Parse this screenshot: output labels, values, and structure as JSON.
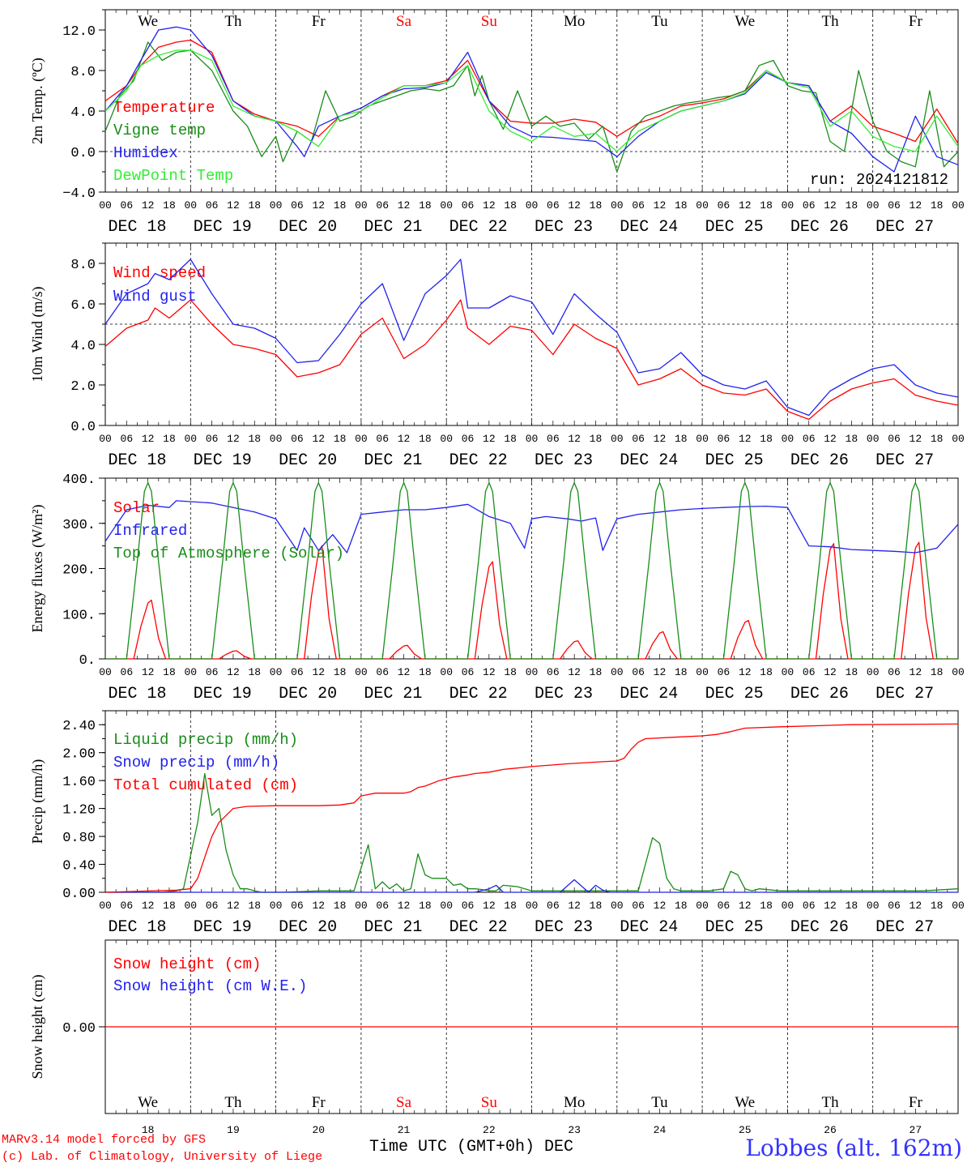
{
  "credits": {
    "line1": "MARv3.14 model forced by GFS",
    "line2": "(c) Lab. of Climatology, University of Liege"
  },
  "footer": {
    "xlabel": "Time UTC (GMT+0h) DEC",
    "station": "Lobbes (alt. 162m)"
  },
  "colors": {
    "red": "#ff0000",
    "green": "#1a8c1a",
    "blue": "#2222ee",
    "lightgreen": "#33ee33",
    "weekend": "#ff0000",
    "weekday": "#000000"
  },
  "timeline": {
    "days": [
      "We",
      "Th",
      "Fr",
      "Sa",
      "Su",
      "Mo",
      "Tu",
      "We",
      "Th",
      "Fr"
    ],
    "weekend": [
      false,
      false,
      false,
      true,
      true,
      false,
      false,
      false,
      false,
      false
    ],
    "dates": [
      "DEC 18",
      "DEC 19",
      "DEC 20",
      "DEC 21",
      "DEC 22",
      "DEC 23",
      "DEC 24",
      "DEC 25",
      "DEC 26",
      "DEC 27"
    ],
    "day_numbers": [
      "18",
      "19",
      "20",
      "21",
      "22",
      "23",
      "24",
      "25",
      "26",
      "27"
    ],
    "hour_ticks": [
      "00",
      "06",
      "12",
      "18"
    ],
    "start": "2024-12-18 00 UTC",
    "end": "2024-12-28 00 UTC"
  },
  "chart_data": [
    {
      "type": "line",
      "ylabel": "2m Temp. (ºC)",
      "ylim": [
        -4,
        14
      ],
      "yticks": [
        "−4.0",
        "0.0",
        "4.0",
        "8.0",
        "12.0"
      ],
      "ytick_values": [
        -4,
        0,
        4,
        8,
        12
      ],
      "ref_line": 0,
      "show_day_names": true,
      "annotation": "run: 2024121812",
      "x_unit": "hours since 2024-12-18 00 UTC",
      "series": [
        {
          "name": "Temperature",
          "color": "red",
          "x": [
            0,
            6,
            10,
            15,
            20,
            24,
            30,
            36,
            42,
            48,
            54,
            60,
            66,
            72,
            78,
            84,
            90,
            96,
            102,
            108,
            114,
            120,
            126,
            132,
            138,
            144,
            150,
            156,
            162,
            168,
            174,
            180,
            186,
            192,
            198,
            204,
            210,
            216,
            222,
            228,
            234,
            240
          ],
          "y": [
            5,
            6.5,
            8.5,
            10.3,
            10.8,
            11,
            9.8,
            5,
            3.7,
            3,
            2.5,
            1.5,
            3.5,
            4.3,
            5.5,
            6.5,
            6.5,
            7,
            9,
            5,
            3,
            2.8,
            2.8,
            3.2,
            2.9,
            1.5,
            2.8,
            3.5,
            4.5,
            4.8,
            5.2,
            6,
            8,
            6.8,
            6.5,
            3,
            4.5,
            2.5,
            1.8,
            1,
            4.2,
            0.8
          ]
        },
        {
          "name": "Vigne temp",
          "color": "green",
          "x": [
            0,
            4,
            8,
            12,
            16,
            20,
            24,
            30,
            36,
            40,
            44,
            48,
            50,
            54,
            58,
            62,
            66,
            70,
            74,
            78,
            82,
            86,
            90,
            94,
            98,
            102,
            104,
            106,
            108,
            112,
            116,
            120,
            124,
            128,
            132,
            136,
            140,
            144,
            148,
            152,
            156,
            160,
            164,
            168,
            172,
            176,
            180,
            184,
            188,
            192,
            196,
            200,
            204,
            208,
            212,
            216,
            220,
            224,
            228,
            232,
            236,
            240
          ],
          "y": [
            2,
            5.5,
            7,
            10.8,
            9,
            9.8,
            10,
            8,
            4,
            2.5,
            -0.5,
            1.5,
            -1,
            2,
            1,
            6,
            3,
            3.5,
            4.5,
            5,
            5.5,
            6,
            6.2,
            6,
            6.5,
            8.5,
            5.5,
            7.5,
            5,
            2.2,
            6,
            2.5,
            3.5,
            2.5,
            2.8,
            1.2,
            2.5,
            -2,
            2,
            3.5,
            4,
            4.5,
            4.8,
            5,
            5.3,
            5.5,
            6,
            8.5,
            9,
            6.5,
            6,
            5.8,
            1,
            0,
            8,
            3,
            0,
            -1,
            -1.5,
            6,
            -1.5,
            0
          ]
        },
        {
          "name": "Humidex",
          "color": "blue",
          "x": [
            0,
            6,
            10,
            15,
            20,
            24,
            30,
            36,
            42,
            48,
            54,
            56,
            60,
            66,
            72,
            78,
            84,
            90,
            96,
            102,
            108,
            114,
            120,
            126,
            132,
            138,
            144,
            150,
            156,
            162,
            168,
            174,
            180,
            186,
            192,
            198,
            204,
            210,
            216,
            222,
            228,
            234,
            240
          ],
          "y": [
            4,
            6.5,
            9,
            12,
            12.3,
            12,
            9.5,
            5,
            3.5,
            3,
            0.5,
            -0.5,
            2.5,
            3.5,
            4.3,
            5.5,
            6.2,
            6.3,
            6.8,
            9.8,
            5,
            2.5,
            1.5,
            1.4,
            1.2,
            1,
            -0.5,
            1.5,
            3,
            4,
            4.5,
            5,
            5.7,
            7.8,
            6.8,
            6.5,
            3,
            1.8,
            -0.5,
            -2,
            3.5,
            -0.5,
            -1.3
          ]
        },
        {
          "name": "DewPoint Temp",
          "color": "lightgreen",
          "x": [
            0,
            6,
            10,
            15,
            20,
            24,
            30,
            36,
            42,
            48,
            54,
            60,
            66,
            72,
            78,
            84,
            90,
            96,
            102,
            108,
            114,
            120,
            126,
            132,
            138,
            144,
            150,
            156,
            162,
            168,
            174,
            180,
            186,
            192,
            198,
            204,
            210,
            216,
            222,
            228,
            234,
            240
          ],
          "y": [
            4,
            6,
            8.5,
            9.5,
            10,
            10,
            9,
            4.5,
            3.5,
            3,
            2,
            0.5,
            3.5,
            4,
            5.3,
            6.5,
            6.5,
            6.8,
            8.5,
            4,
            2,
            1,
            2.5,
            1.5,
            1.8,
            0,
            2,
            3,
            4,
            4.5,
            5,
            5.8,
            8,
            6.8,
            6.3,
            2.5,
            4,
            1.5,
            0.5,
            0,
            3.5,
            0.5
          ]
        }
      ]
    },
    {
      "type": "line",
      "ylabel": "10m Wind (m/s)",
      "ylim": [
        0,
        9
      ],
      "yticks": [
        "0.0",
        "2.0",
        "4.0",
        "6.0",
        "8.0"
      ],
      "ytick_values": [
        0,
        2,
        4,
        6,
        8
      ],
      "ref_line": 5,
      "x_unit": "hours since 2024-12-18 00 UTC",
      "series": [
        {
          "name": "Wind speed",
          "color": "red",
          "x": [
            0,
            6,
            12,
            14,
            18,
            24,
            30,
            36,
            42,
            48,
            54,
            60,
            66,
            72,
            78,
            84,
            90,
            96,
            100,
            102,
            108,
            114,
            120,
            126,
            132,
            138,
            144,
            150,
            156,
            162,
            168,
            174,
            180,
            186,
            192,
            198,
            204,
            210,
            216,
            222,
            228,
            234,
            240
          ],
          "y": [
            3.9,
            4.8,
            5.2,
            5.8,
            5.3,
            6.2,
            5,
            4,
            3.8,
            3.5,
            2.4,
            2.6,
            3,
            4.5,
            5.3,
            3.3,
            4,
            5.2,
            6.2,
            4.8,
            4,
            4.9,
            4.7,
            3.5,
            5,
            4.3,
            3.8,
            2,
            2.3,
            2.8,
            2,
            1.6,
            1.5,
            1.8,
            0.7,
            0.3,
            1.2,
            1.8,
            2.1,
            2.3,
            1.5,
            1.2,
            1
          ]
        },
        {
          "name": "Wind gust",
          "color": "blue",
          "x": [
            0,
            6,
            12,
            14,
            18,
            24,
            30,
            36,
            42,
            48,
            54,
            60,
            66,
            72,
            78,
            84,
            90,
            96,
            100,
            102,
            108,
            114,
            120,
            126,
            132,
            138,
            144,
            150,
            156,
            162,
            168,
            174,
            180,
            186,
            192,
            198,
            204,
            210,
            216,
            222,
            228,
            234,
            240
          ],
          "y": [
            5,
            6.5,
            7,
            7.5,
            7.2,
            8.2,
            6.5,
            5,
            4.8,
            4.3,
            3.1,
            3.2,
            4.5,
            6,
            7,
            4.2,
            6.5,
            7.4,
            8.2,
            5.8,
            5.8,
            6.4,
            6.1,
            4.5,
            6.5,
            5.5,
            4.6,
            2.6,
            2.8,
            3.6,
            2.5,
            2,
            1.8,
            2.2,
            0.9,
            0.5,
            1.7,
            2.3,
            2.8,
            3,
            2,
            1.6,
            1.4
          ]
        }
      ]
    },
    {
      "type": "line",
      "ylabel": "Energy fluxes (W/m²)",
      "ylim": [
        0,
        400
      ],
      "yticks": [
        "0.",
        "100.",
        "200.",
        "300.",
        "400."
      ],
      "ytick_values": [
        0,
        100,
        200,
        300,
        400
      ],
      "x_unit": "hours since 2024-12-18 00 UTC",
      "series": [
        {
          "name": "Solar",
          "color": "red",
          "solar_day_peaks": [
            130,
            18,
            250,
            30,
            215,
            40,
            60,
            85,
            255,
            258
          ]
        },
        {
          "name": "Infrared",
          "color": "blue",
          "x": [
            0,
            6,
            12,
            18,
            20,
            24,
            30,
            36,
            42,
            48,
            54,
            56,
            60,
            64,
            68,
            72,
            78,
            84,
            90,
            96,
            102,
            108,
            114,
            118,
            120,
            124,
            130,
            134,
            138,
            140,
            144,
            150,
            156,
            162,
            168,
            174,
            180,
            186,
            192,
            198,
            204,
            210,
            216,
            222,
            228,
            234,
            240
          ],
          "y": [
            260,
            330,
            340,
            335,
            350,
            348,
            345,
            335,
            325,
            310,
            240,
            290,
            240,
            275,
            235,
            320,
            325,
            330,
            330,
            335,
            342,
            315,
            300,
            245,
            310,
            315,
            310,
            305,
            312,
            240,
            310,
            320,
            325,
            330,
            333,
            335,
            337,
            338,
            335,
            250,
            248,
            242,
            240,
            238,
            235,
            245,
            298
          ]
        },
        {
          "name": "Top of Atmosphere (Solar)",
          "color": "green",
          "toa_peak": 390
        }
      ]
    },
    {
      "type": "line",
      "ylabel": "Precip (mm/h)",
      "ylim": [
        0,
        2.6
      ],
      "yticks": [
        "0.00",
        "0.40",
        "0.80",
        "1.20",
        "1.60",
        "2.00",
        "2.40"
      ],
      "ytick_values": [
        0,
        0.4,
        0.8,
        1.2,
        1.6,
        2.0,
        2.4
      ],
      "x_unit": "hours since 2024-12-18 00 UTC",
      "series": [
        {
          "name": "Liquid precip (mm/h)",
          "color": "green",
          "x": [
            0,
            16,
            20,
            22,
            26,
            28,
            30,
            32,
            34,
            36,
            38,
            40,
            42,
            44,
            46,
            50,
            60,
            70,
            74,
            76,
            78,
            80,
            82,
            84,
            86,
            88,
            90,
            92,
            96,
            98,
            100,
            102,
            104,
            106,
            108,
            110,
            112,
            116,
            120,
            130,
            136,
            146,
            150,
            152,
            154,
            156,
            158,
            160,
            162,
            166,
            170,
            174,
            176,
            178,
            180,
            182,
            184,
            190,
            210,
            230,
            240
          ],
          "y": [
            0,
            0,
            0.02,
            0.05,
            1,
            1.7,
            1.1,
            1.2,
            0.6,
            0.25,
            0.05,
            0.05,
            0.02,
            0,
            0,
            0,
            0.02,
            0.02,
            0.68,
            0.05,
            0.15,
            0.05,
            0.12,
            0.02,
            0.05,
            0.55,
            0.25,
            0.2,
            0.2,
            0.1,
            0.12,
            0.05,
            0.05,
            0.04,
            0.02,
            0.02,
            0.1,
            0.08,
            0.02,
            0.02,
            0.02,
            0.02,
            0.02,
            0.4,
            0.78,
            0.7,
            0.2,
            0.05,
            0.02,
            0.02,
            0.02,
            0.05,
            0.3,
            0.25,
            0.05,
            0.02,
            0.05,
            0.02,
            0.02,
            0.02,
            0.05
          ]
        },
        {
          "name": "Snow precip (mm/h)",
          "color": "blue",
          "x": [
            0,
            104,
            108,
            110,
            112,
            128,
            132,
            136,
            138,
            140,
            142,
            240
          ],
          "y": [
            0,
            0,
            0.05,
            0.1,
            0,
            0,
            0.18,
            0,
            0.1,
            0.03,
            0,
            0
          ]
        },
        {
          "name": "Total cumulated (cm)",
          "color": "red",
          "x": [
            0,
            20,
            24,
            26,
            28,
            30,
            32,
            34,
            36,
            40,
            48,
            60,
            66,
            70,
            72,
            74,
            76,
            78,
            84,
            86,
            88,
            90,
            94,
            98,
            102,
            104,
            108,
            112,
            120,
            130,
            140,
            144,
            146,
            148,
            150,
            152,
            160,
            168,
            172,
            176,
            180,
            190,
            210,
            240
          ],
          "y": [
            0,
            0.03,
            0.05,
            0.2,
            0.5,
            0.8,
            1.0,
            1.1,
            1.2,
            1.23,
            1.24,
            1.24,
            1.25,
            1.28,
            1.38,
            1.4,
            1.42,
            1.42,
            1.42,
            1.44,
            1.5,
            1.52,
            1.6,
            1.65,
            1.68,
            1.7,
            1.72,
            1.76,
            1.8,
            1.84,
            1.87,
            1.88,
            1.92,
            2.05,
            2.15,
            2.2,
            2.22,
            2.24,
            2.26,
            2.3,
            2.35,
            2.37,
            2.4,
            2.41
          ]
        }
      ]
    },
    {
      "type": "line",
      "ylabel": "Snow height (cm)",
      "ylim": [
        -1,
        1
      ],
      "yticks": [
        "0.00"
      ],
      "ytick_values": [
        0
      ],
      "show_day_names": true,
      "x_unit": "hours since 2024-12-18 00 UTC",
      "series": [
        {
          "name": "Snow height (cm)",
          "color": "red",
          "x": [
            0,
            240
          ],
          "y": [
            0,
            0
          ]
        },
        {
          "name": "Snow height (cm W.E.)",
          "color": "blue",
          "x": [],
          "y": []
        }
      ]
    }
  ]
}
